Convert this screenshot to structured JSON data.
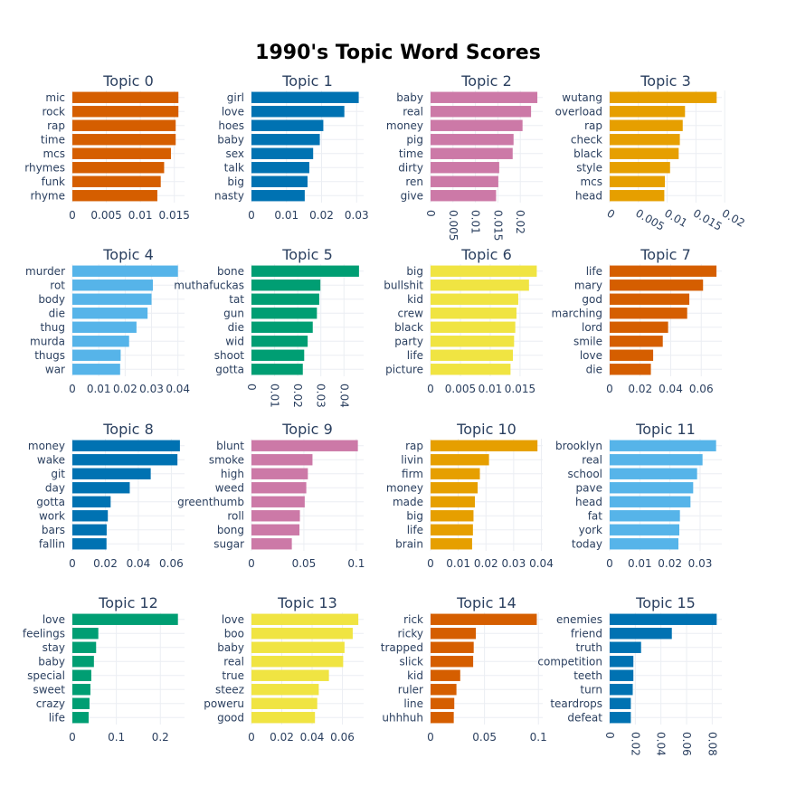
{
  "title": "1990's Topic Word Scores",
  "chart_data": [
    {
      "type": "bar",
      "orientation": "horizontal",
      "title": "Topic 0",
      "color": "#D55E00",
      "categories": [
        "mic",
        "rock",
        "rap",
        "time",
        "mcs",
        "rhymes",
        "funk",
        "rhyme"
      ],
      "values": [
        0.0156,
        0.0156,
        0.0152,
        0.0152,
        0.0145,
        0.0135,
        0.013,
        0.0125
      ],
      "xlim": [
        0,
        0.0165
      ],
      "ticks": [
        0,
        0.005,
        0.01,
        0.015
      ],
      "tick_labels": [
        "0",
        "0.005",
        "0.01",
        "0.015"
      ]
    },
    {
      "type": "bar",
      "orientation": "horizontal",
      "title": "Topic 1",
      "color": "#0072B2",
      "categories": [
        "girl",
        "love",
        "hoes",
        "baby",
        "sex",
        "talk",
        "big",
        "nasty"
      ],
      "values": [
        0.0306,
        0.0265,
        0.0205,
        0.0195,
        0.0176,
        0.0165,
        0.016,
        0.0152
      ],
      "xlim": [
        0,
        0.032
      ],
      "ticks": [
        0,
        0.01,
        0.02,
        0.03
      ],
      "tick_labels": [
        "0",
        "0.01",
        "0.02",
        "0.03"
      ]
    },
    {
      "type": "bar",
      "orientation": "horizontal",
      "title": "Topic 2",
      "color": "#CC79A7",
      "categories": [
        "baby",
        "real",
        "money",
        "pig",
        "time",
        "dirty",
        "ren",
        "give"
      ],
      "values": [
        0.0238,
        0.0224,
        0.0205,
        0.0185,
        0.0183,
        0.0153,
        0.0151,
        0.0146
      ],
      "xlim": [
        0,
        0.025
      ],
      "ticks": [
        0,
        0.005,
        0.01,
        0.015,
        0.02
      ],
      "tick_labels": [
        "0",
        "0.005",
        "0.01",
        "0.015",
        "0.02"
      ],
      "tick_angle": 90
    },
    {
      "type": "bar",
      "orientation": "horizontal",
      "title": "Topic 3",
      "color": "#E69F00",
      "categories": [
        "wutang",
        "overload",
        "rap",
        "check",
        "black",
        "style",
        "mcs",
        "head"
      ],
      "values": [
        0.0186,
        0.0131,
        0.0127,
        0.0122,
        0.012,
        0.0105,
        0.0096,
        0.0095
      ],
      "xlim": [
        0,
        0.0195
      ],
      "ticks": [
        0,
        0.005,
        0.01,
        0.015,
        0.02
      ],
      "tick_labels": [
        "0",
        "0.005",
        "0.01",
        "0.015",
        "0.02"
      ],
      "tick_angle": 30
    },
    {
      "type": "bar",
      "orientation": "horizontal",
      "title": "Topic 4",
      "color": "#56B4E9",
      "categories": [
        "murder",
        "rot",
        "body",
        "die",
        "thug",
        "murda",
        "thugs",
        "war"
      ],
      "values": [
        0.04,
        0.0305,
        0.03,
        0.0285,
        0.0243,
        0.0215,
        0.0183,
        0.0181
      ],
      "xlim": [
        0,
        0.0425
      ],
      "ticks": [
        0,
        0.01,
        0.02,
        0.03,
        0.04
      ],
      "tick_labels": [
        "0",
        "0.01",
        "0.02",
        "0.03",
        "0.04"
      ]
    },
    {
      "type": "bar",
      "orientation": "horizontal",
      "title": "Topic 5",
      "color": "#009E73",
      "categories": [
        "bone",
        "muthafuckas",
        "tat",
        "gun",
        "die",
        "wid",
        "shoot",
        "gotta"
      ],
      "values": [
        0.0465,
        0.0298,
        0.0293,
        0.0283,
        0.0265,
        0.0243,
        0.0228,
        0.0222
      ],
      "xlim": [
        0,
        0.0485
      ],
      "ticks": [
        0,
        0.01,
        0.02,
        0.03,
        0.04
      ],
      "tick_labels": [
        "0",
        "0.01",
        "0.02",
        "0.03",
        "0.04"
      ],
      "tick_angle": 90
    },
    {
      "type": "bar",
      "orientation": "horizontal",
      "title": "Topic 6",
      "color": "#F0E442",
      "categories": [
        "big",
        "bullshit",
        "kid",
        "crew",
        "black",
        "party",
        "life",
        "picture"
      ],
      "values": [
        0.0178,
        0.0165,
        0.0147,
        0.0144,
        0.0142,
        0.014,
        0.0138,
        0.0134
      ],
      "xlim": [
        0,
        0.0188
      ],
      "ticks": [
        0,
        0.005,
        0.01,
        0.015
      ],
      "tick_labels": [
        "0",
        "0.005",
        "0.01",
        "0.015"
      ]
    },
    {
      "type": "bar",
      "orientation": "horizontal",
      "title": "Topic 7",
      "color": "#D55E00",
      "categories": [
        "life",
        "mary",
        "god",
        "marching",
        "lord",
        "smile",
        "love",
        "die"
      ],
      "values": [
        0.07,
        0.0612,
        0.0522,
        0.0508,
        0.0383,
        0.0348,
        0.0285,
        0.027
      ],
      "xlim": [
        0,
        0.0735
      ],
      "ticks": [
        0,
        0.02,
        0.04,
        0.06
      ],
      "tick_labels": [
        "0",
        "0.02",
        "0.04",
        "0.06"
      ]
    },
    {
      "type": "bar",
      "orientation": "horizontal",
      "title": "Topic 8",
      "color": "#0072B2",
      "categories": [
        "money",
        "wake",
        "git",
        "day",
        "gotta",
        "work",
        "bars",
        "fallin"
      ],
      "values": [
        0.0652,
        0.0637,
        0.0475,
        0.0348,
        0.0232,
        0.0215,
        0.0208,
        0.0207
      ],
      "xlim": [
        0,
        0.068
      ],
      "ticks": [
        0,
        0.02,
        0.04,
        0.06
      ],
      "tick_labels": [
        "0",
        "0.02",
        "0.04",
        "0.06"
      ]
    },
    {
      "type": "bar",
      "orientation": "horizontal",
      "title": "Topic 9",
      "color": "#CC79A7",
      "categories": [
        "blunt",
        "smoke",
        "high",
        "weed",
        "greenthumb",
        "roll",
        "bong",
        "sugar"
      ],
      "values": [
        0.1015,
        0.0582,
        0.0538,
        0.0523,
        0.0508,
        0.0462,
        0.0458,
        0.0385
      ],
      "xlim": [
        0,
        0.107
      ],
      "ticks": [
        0,
        0.05,
        0.1
      ],
      "tick_labels": [
        "0",
        "0.05",
        "0.1"
      ]
    },
    {
      "type": "bar",
      "orientation": "horizontal",
      "title": "Topic 10",
      "color": "#E69F00",
      "categories": [
        "rap",
        "livin",
        "firm",
        "money",
        "made",
        "big",
        "life",
        "brain"
      ],
      "values": [
        0.0386,
        0.0211,
        0.0178,
        0.017,
        0.016,
        0.0155,
        0.0153,
        0.015
      ],
      "xlim": [
        0,
        0.0405
      ],
      "ticks": [
        0,
        0.01,
        0.02,
        0.03,
        0.04
      ],
      "tick_labels": [
        "0",
        "0.01",
        "0.02",
        "0.03",
        "0.04"
      ]
    },
    {
      "type": "bar",
      "orientation": "horizontal",
      "title": "Topic 11",
      "color": "#56B4E9",
      "categories": [
        "brooklyn",
        "real",
        "school",
        "pave",
        "head",
        "fat",
        "york",
        "today"
      ],
      "values": [
        0.0353,
        0.0308,
        0.029,
        0.0277,
        0.0268,
        0.0233,
        0.0231,
        0.0228
      ],
      "xlim": [
        0,
        0.0372
      ],
      "ticks": [
        0,
        0.01,
        0.02,
        0.03
      ],
      "tick_labels": [
        "0",
        "0.01",
        "0.02",
        "0.03"
      ]
    },
    {
      "type": "bar",
      "orientation": "horizontal",
      "title": "Topic 12",
      "color": "#009E73",
      "categories": [
        "love",
        "feelings",
        "stay",
        "baby",
        "special",
        "sweet",
        "crazy",
        "life"
      ],
      "values": [
        0.24,
        0.059,
        0.054,
        0.049,
        0.043,
        0.041,
        0.039,
        0.037
      ],
      "xlim": [
        0,
        0.255
      ],
      "ticks": [
        0,
        0.1,
        0.2
      ],
      "tick_labels": [
        "0",
        "0.1",
        "0.2"
      ]
    },
    {
      "type": "bar",
      "orientation": "horizontal",
      "title": "Topic 13",
      "color": "#F0E442",
      "categories": [
        "love",
        "boo",
        "baby",
        "real",
        "true",
        "steez",
        "poweru",
        "good"
      ],
      "values": [
        0.0705,
        0.0668,
        0.0614,
        0.0605,
        0.0511,
        0.0444,
        0.0434,
        0.0419
      ],
      "xlim": [
        0,
        0.074
      ],
      "ticks": [
        0,
        0.02,
        0.04,
        0.06
      ],
      "tick_labels": [
        "0",
        "0.02",
        "0.04",
        "0.06"
      ]
    },
    {
      "type": "bar",
      "orientation": "horizontal",
      "title": "Topic 14",
      "color": "#D55E00",
      "categories": [
        "rick",
        "ricky",
        "trapped",
        "slick",
        "kid",
        "ruler",
        "line",
        "uhhhuh"
      ],
      "values": [
        0.0985,
        0.042,
        0.04,
        0.0395,
        0.0275,
        0.024,
        0.022,
        0.0215
      ],
      "xlim": [
        0,
        0.104
      ],
      "ticks": [
        0,
        0.05,
        0.1
      ],
      "tick_labels": [
        "0",
        "0.05",
        "0.1"
      ]
    },
    {
      "type": "bar",
      "orientation": "horizontal",
      "title": "Topic 15",
      "color": "#0072B2",
      "categories": [
        "enemies",
        "friend",
        "truth",
        "competition",
        "teeth",
        "turn",
        "teardrops",
        "defeat"
      ],
      "values": [
        0.0835,
        0.0485,
        0.0245,
        0.0185,
        0.0185,
        0.018,
        0.0165,
        0.0165
      ],
      "xlim": [
        0,
        0.0875
      ],
      "ticks": [
        0,
        0.02,
        0.04,
        0.06,
        0.08
      ],
      "tick_labels": [
        "0",
        "0.02",
        "0.04",
        "0.06",
        "0.08"
      ],
      "tick_angle": 90
    }
  ]
}
